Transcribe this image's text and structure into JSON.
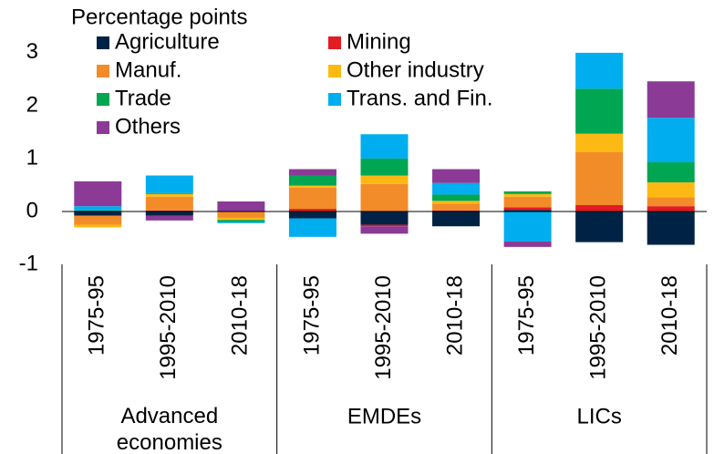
{
  "chart_data": {
    "type": "stacked_bar",
    "y_label": "Percentage points",
    "groups": [
      {
        "name": "Advanced economies",
        "categories": [
          "1975-95",
          "1995-2010",
          "2010-18"
        ]
      },
      {
        "name": "EMDEs",
        "categories": [
          "1975-95",
          "1995-2010",
          "2010-18"
        ]
      },
      {
        "name": "LICs",
        "categories": [
          "1975-95",
          "1995-2010",
          "2010-18"
        ]
      }
    ],
    "series": [
      {
        "name": "Agriculture",
        "color": "#002345",
        "values": [
          -0.08,
          -0.08,
          0,
          -0.13,
          -0.25,
          -0.28,
          0.03,
          -0.58,
          -0.63
        ]
      },
      {
        "name": "Mining",
        "color": "#e31b23",
        "values": [
          0,
          0.02,
          0,
          0.05,
          -0.03,
          0.02,
          0.05,
          0.12,
          0.1
        ]
      },
      {
        "name": "Manuf.",
        "color": "#f28c28",
        "values": [
          -0.17,
          0.26,
          -0.12,
          0.4,
          0.52,
          0.13,
          0.2,
          1.0,
          0.17
        ]
      },
      {
        "name": "Other industry",
        "color": "#fdb913",
        "values": [
          -0.05,
          0.05,
          -0.04,
          0.04,
          0.16,
          0.05,
          0.05,
          0.35,
          0.28
        ]
      },
      {
        "name": "Trade",
        "color": "#00a651",
        "values": [
          0.02,
          0.02,
          -0.04,
          0.19,
          0.32,
          0.12,
          0.05,
          0.85,
          0.38
        ]
      },
      {
        "name": "Trans. and Fin.",
        "color": "#00adef",
        "values": [
          0.08,
          0.33,
          -0.02,
          -0.35,
          0.46,
          0.22,
          -0.57,
          0.68,
          0.84
        ]
      },
      {
        "name": "Others",
        "color": "#8b3a96",
        "values": [
          0.47,
          -0.09,
          0.19,
          0.12,
          -0.14,
          0.26,
          -0.1,
          0,
          0.69
        ]
      }
    ],
    "ylim": [
      -1,
      3.05
    ],
    "yticks": [
      -1,
      0,
      1,
      2,
      3
    ],
    "legend": "top-left"
  }
}
